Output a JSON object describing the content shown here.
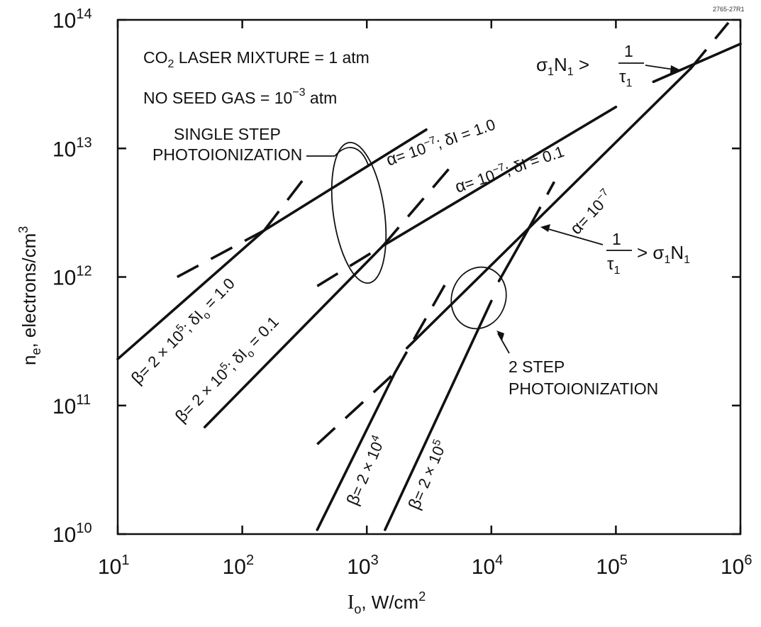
{
  "figure_id": "2765-27R1",
  "chart_data": {
    "type": "line",
    "x_scale": "log",
    "y_scale": "log",
    "xlim": [
      10,
      1000000
    ],
    "ylim": [
      10000000000,
      100000000000000
    ],
    "xlabel": "Io, W/cm2",
    "ylabel": "ne, electrons/cm3",
    "x_ticks": [
      {
        "base": "10",
        "exp": "1"
      },
      {
        "base": "10",
        "exp": "2"
      },
      {
        "base": "10",
        "exp": "3"
      },
      {
        "base": "10",
        "exp": "4"
      },
      {
        "base": "10",
        "exp": "5"
      },
      {
        "base": "10",
        "exp": "6"
      }
    ],
    "y_ticks": [
      {
        "base": "10",
        "exp": "10"
      },
      {
        "base": "10",
        "exp": "11"
      },
      {
        "base": "10",
        "exp": "12"
      },
      {
        "base": "10",
        "exp": "13"
      },
      {
        "base": "10",
        "exp": "14"
      }
    ],
    "conditions": [
      "CO2 LASER MIXTURE = 1 atm",
      "NO SEED GAS = 10−3 atm"
    ],
    "series": [
      {
        "label": "β= 2 × 105; δIo = 1.0",
        "style": "solid",
        "points": [
          [
            10,
            230000000000
          ],
          [
            150,
            2300000000000
          ]
        ]
      },
      {
        "label": "α= 10−7; δI = 1.0",
        "style": "solid",
        "points": [
          [
            150,
            2300000000000
          ],
          [
            3000,
            14000000000000
          ]
        ]
      },
      {
        "label": "",
        "style": "dashed",
        "points": [
          [
            30,
            1000000000000
          ],
          [
            150,
            2300000000000
          ]
        ]
      },
      {
        "label": "",
        "style": "dashed",
        "points": [
          [
            150,
            2300000000000
          ],
          [
            320,
            6000000000000
          ]
        ]
      },
      {
        "label": "β= 2 × 105; δIo = 0.1",
        "style": "solid",
        "points": [
          [
            50,
            68000000000
          ],
          [
            1350,
            1750000000000
          ]
        ]
      },
      {
        "label": "α= 10−7; δI = 0.1",
        "style": "solid",
        "points": [
          [
            1350,
            1750000000000
          ],
          [
            100000,
            21000000000000
          ]
        ]
      },
      {
        "label": "",
        "style": "dashed",
        "points": [
          [
            400,
            850000000000
          ],
          [
            1350,
            1750000000000
          ]
        ]
      },
      {
        "label": "",
        "style": "dashed",
        "points": [
          [
            1350,
            1750000000000
          ],
          [
            4600,
            7000000000000
          ]
        ]
      },
      {
        "label": "β= 2 × 104",
        "style": "solid",
        "points": [
          [
            400,
            10800000000
          ],
          [
            1680,
            180000000000
          ]
        ]
      },
      {
        "label": "",
        "style": "solid",
        "points": [
          [
            2100,
            280000000000
          ],
          [
            20000,
            2400000000000
          ]
        ]
      },
      {
        "label": "α= 10−7",
        "style": "solid",
        "points": [
          [
            20000,
            2400000000000
          ],
          [
            400000,
            42000000000000
          ]
        ]
      },
      {
        "label": "",
        "style": "dashed",
        "points": [
          [
            400,
            50000000000
          ],
          [
            1680,
            180000000000
          ]
        ]
      },
      {
        "label": "",
        "style": "dashed",
        "points": [
          [
            1680,
            180000000000
          ],
          [
            4600,
            1000000000000
          ]
        ]
      },
      {
        "label": "",
        "style": "dashed",
        "points": [
          [
            20000,
            2400000000000
          ],
          [
            32000,
            5500000000000
          ]
        ]
      },
      {
        "label": "β= 2 × 105",
        "style": "solid",
        "points": [
          [
            1400,
            10800000000
          ],
          [
            10000,
            650000000000
          ]
        ]
      },
      {
        "label": "",
        "style": "solid",
        "points": [
          [
            11500,
            930000000000
          ],
          [
            20000,
            2400000000000
          ]
        ]
      },
      {
        "label": "",
        "style": "solid",
        "points": [
          [
            200000,
            33000000000000
          ],
          [
            1000000,
            65000000000000
          ]
        ]
      },
      {
        "label": "",
        "style": "dashed",
        "points": [
          [
            400000,
            42000000000000
          ],
          [
            800000,
            95000000000000
          ]
        ]
      }
    ],
    "annotations": {
      "single_step": [
        "SINGLE STEP",
        "PHOTOIONIZATION"
      ],
      "two_step": [
        "2 STEP",
        "PHOTOIONIZATION"
      ],
      "condition_high": "σ1N1 > 1/τ1",
      "condition_low": "1/τ1 > σ1N1"
    }
  }
}
